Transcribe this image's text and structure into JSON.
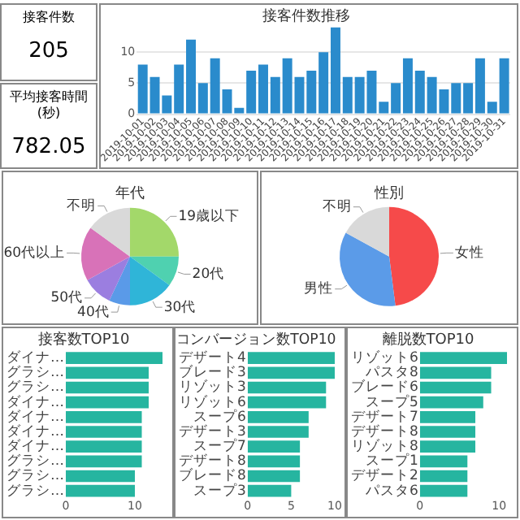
{
  "chart_data": [
    {
      "type": "other",
      "title": "接客件数",
      "annotations": [
        "205"
      ]
    },
    {
      "type": "bar",
      "title": "接客件数推移",
      "categories": [
        "2019-10-01",
        "2019-10-02",
        "2019-10-03",
        "2019-10-04",
        "2019-10-05",
        "2019-10-06",
        "2019-10-07",
        "2019-10-08",
        "2019-10-09",
        "2019-10-10",
        "2019-10-11",
        "2019-10-12",
        "2019-10-13",
        "2019-10-14",
        "2019-10-15",
        "2019-10-16",
        "2019-10-17",
        "2019-10-18",
        "2019-10-19",
        "2019-10-20",
        "2019-10-21",
        "2019-10-22",
        "2019-10-23",
        "2019-10-24",
        "2019-10-25",
        "2019-10-26",
        "2019-10-27",
        "2019-10-28",
        "2019-10-29",
        "2019-10-30",
        "2019-10-31"
      ],
      "values": [
        8,
        6,
        3,
        8,
        12,
        5,
        9,
        4,
        1,
        7,
        8,
        6,
        9,
        6,
        7,
        10,
        14,
        6,
        6,
        7,
        2,
        5,
        9,
        7,
        6,
        4,
        5,
        5,
        9,
        2,
        9
      ],
      "color": "#2a8bcc",
      "ylim": [
        0,
        14
      ],
      "yticks": [
        0,
        5,
        10
      ],
      "grid": "y"
    },
    {
      "type": "other",
      "title": "平均接客時間(秒)",
      "annotations": [
        "782.05"
      ]
    },
    {
      "type": "pie",
      "title": "年代",
      "categories": [
        "19歳以下",
        "20代",
        "30代",
        "40代",
        "50代",
        "60代以上",
        "不明"
      ],
      "values": [
        25,
        10,
        15,
        7,
        10,
        18,
        15
      ],
      "colors": [
        "#a3d86a",
        "#4fd1b0",
        "#2fb5d8",
        "#5a9ae8",
        "#9b7ee0",
        "#d872b8",
        "#d9d9d9"
      ]
    },
    {
      "type": "pie",
      "title": "性別",
      "categories": [
        "女性",
        "男性",
        "不明"
      ],
      "values": [
        48,
        35,
        17
      ],
      "colors": [
        "#f64a4a",
        "#5b9be8",
        "#d9d9d9"
      ]
    },
    {
      "type": "bar",
      "orientation": "horizontal",
      "title": "接客数TOP10",
      "categories": [
        "ダイナ…",
        "グラシ…",
        "グラシ…",
        "ダイナ…",
        "ダイナ…",
        "ダイナ…",
        "ダイナ…",
        "グラシ…",
        "グラシ…",
        "グラシ…"
      ],
      "values": [
        14,
        12,
        12,
        12,
        11,
        11,
        11,
        11,
        10,
        10
      ],
      "color": "#26b5a0",
      "xlim": [
        0,
        14
      ],
      "xticks": [
        0,
        10
      ]
    },
    {
      "type": "bar",
      "orientation": "horizontal",
      "title": "コンバージョン数TOP10",
      "categories": [
        "デザート4",
        "ブレード3",
        "リゾット3",
        "リゾット6",
        "スープ6",
        "デザート3",
        "スープ7",
        "デザート8",
        "ブレード8",
        "スープ3"
      ],
      "values": [
        10,
        10,
        9,
        9,
        7,
        7,
        6,
        6,
        6,
        5
      ],
      "color": "#26b5a0",
      "xlim": [
        0,
        10
      ],
      "xticks": [
        0,
        5,
        10
      ]
    },
    {
      "type": "bar",
      "orientation": "horizontal",
      "title": "離脱数TOP10",
      "categories": [
        "リゾット6",
        "パスタ8",
        "ブレード6",
        "スープ5",
        "デザート7",
        "デザート8",
        "リゾット8",
        "スープ1",
        "デザート2",
        "パスタ6"
      ],
      "values": [
        11,
        9,
        9,
        8,
        7,
        7,
        7,
        6,
        6,
        6
      ],
      "color": "#26b5a0",
      "xlim": [
        0,
        11
      ],
      "xticks": [
        0,
        10
      ]
    }
  ]
}
